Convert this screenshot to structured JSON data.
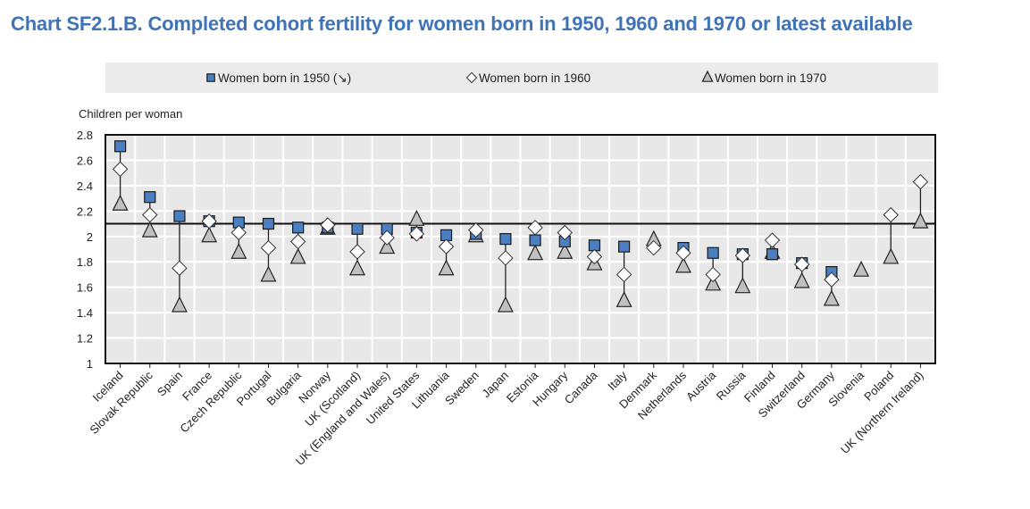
{
  "chart_data": {
    "type": "scatter",
    "title": "Chart SF2.1.B. Completed cohort fertility for women born in 1950, 1960 and 1970 or latest available",
    "ylabel": "Children per woman",
    "xlabel": "",
    "ylim": [
      1,
      2.8
    ],
    "yticks": [
      "1",
      "1.2",
      "1.4",
      "1.6",
      "1.8",
      "2",
      "2.2",
      "2.4",
      "2.6",
      "2.8"
    ],
    "ytick_values": [
      1,
      1.2,
      1.4,
      1.6,
      1.8,
      2,
      2.2,
      2.4,
      2.6,
      2.8
    ],
    "reference_line": 2.1,
    "grid": true,
    "legend_placement": "top",
    "categories": [
      "Iceland",
      "Slovak Republic",
      "Spain",
      "France",
      "Czech Republic",
      "Portugal",
      "Bulgaria",
      "Norway",
      "UK (Scotland)",
      "UK (England and Wales)",
      "United States",
      "Lithuania",
      "Sweden",
      "Japan",
      "Estonia",
      "Hungary",
      "Canada",
      "Italy",
      "Denmark",
      "Netherlands",
      "Austria",
      "Russia",
      "Finland",
      "Switzerland",
      "Germany",
      "Slovenia",
      "Poland",
      "UK (Northern Ireland)"
    ],
    "series": [
      {
        "name": "Women born in 1950 (↘)",
        "marker": "square",
        "color": "#4a7fc1",
        "values": [
          2.71,
          2.31,
          2.16,
          2.12,
          2.11,
          2.1,
          2.07,
          2.07,
          2.06,
          2.06,
          2.03,
          2.01,
          2.02,
          1.98,
          1.97,
          1.96,
          1.93,
          1.92,
          null,
          1.91,
          1.87,
          1.86,
          1.86,
          1.79,
          1.72,
          null,
          null,
          null
        ]
      },
      {
        "name": "Women born in 1960",
        "marker": "diamond",
        "color": "#ffffff",
        "values": [
          2.53,
          2.17,
          1.75,
          2.12,
          2.03,
          1.91,
          1.96,
          2.09,
          1.88,
          1.99,
          2.02,
          1.92,
          2.05,
          1.83,
          2.07,
          2.03,
          1.84,
          1.7,
          1.91,
          1.87,
          1.7,
          1.85,
          1.97,
          1.78,
          1.66,
          null,
          2.17,
          2.43
        ]
      },
      {
        "name": "Women born in 1970",
        "marker": "triangle",
        "color": "#c0c0c0",
        "values": [
          2.25,
          2.04,
          1.45,
          2.0,
          1.87,
          1.69,
          1.83,
          2.06,
          1.74,
          1.91,
          2.13,
          1.74,
          2.0,
          1.45,
          1.86,
          1.87,
          1.78,
          1.49,
          1.97,
          1.76,
          1.62,
          1.6,
          1.87,
          1.64,
          1.5,
          1.73,
          1.83,
          2.11
        ]
      }
    ]
  }
}
